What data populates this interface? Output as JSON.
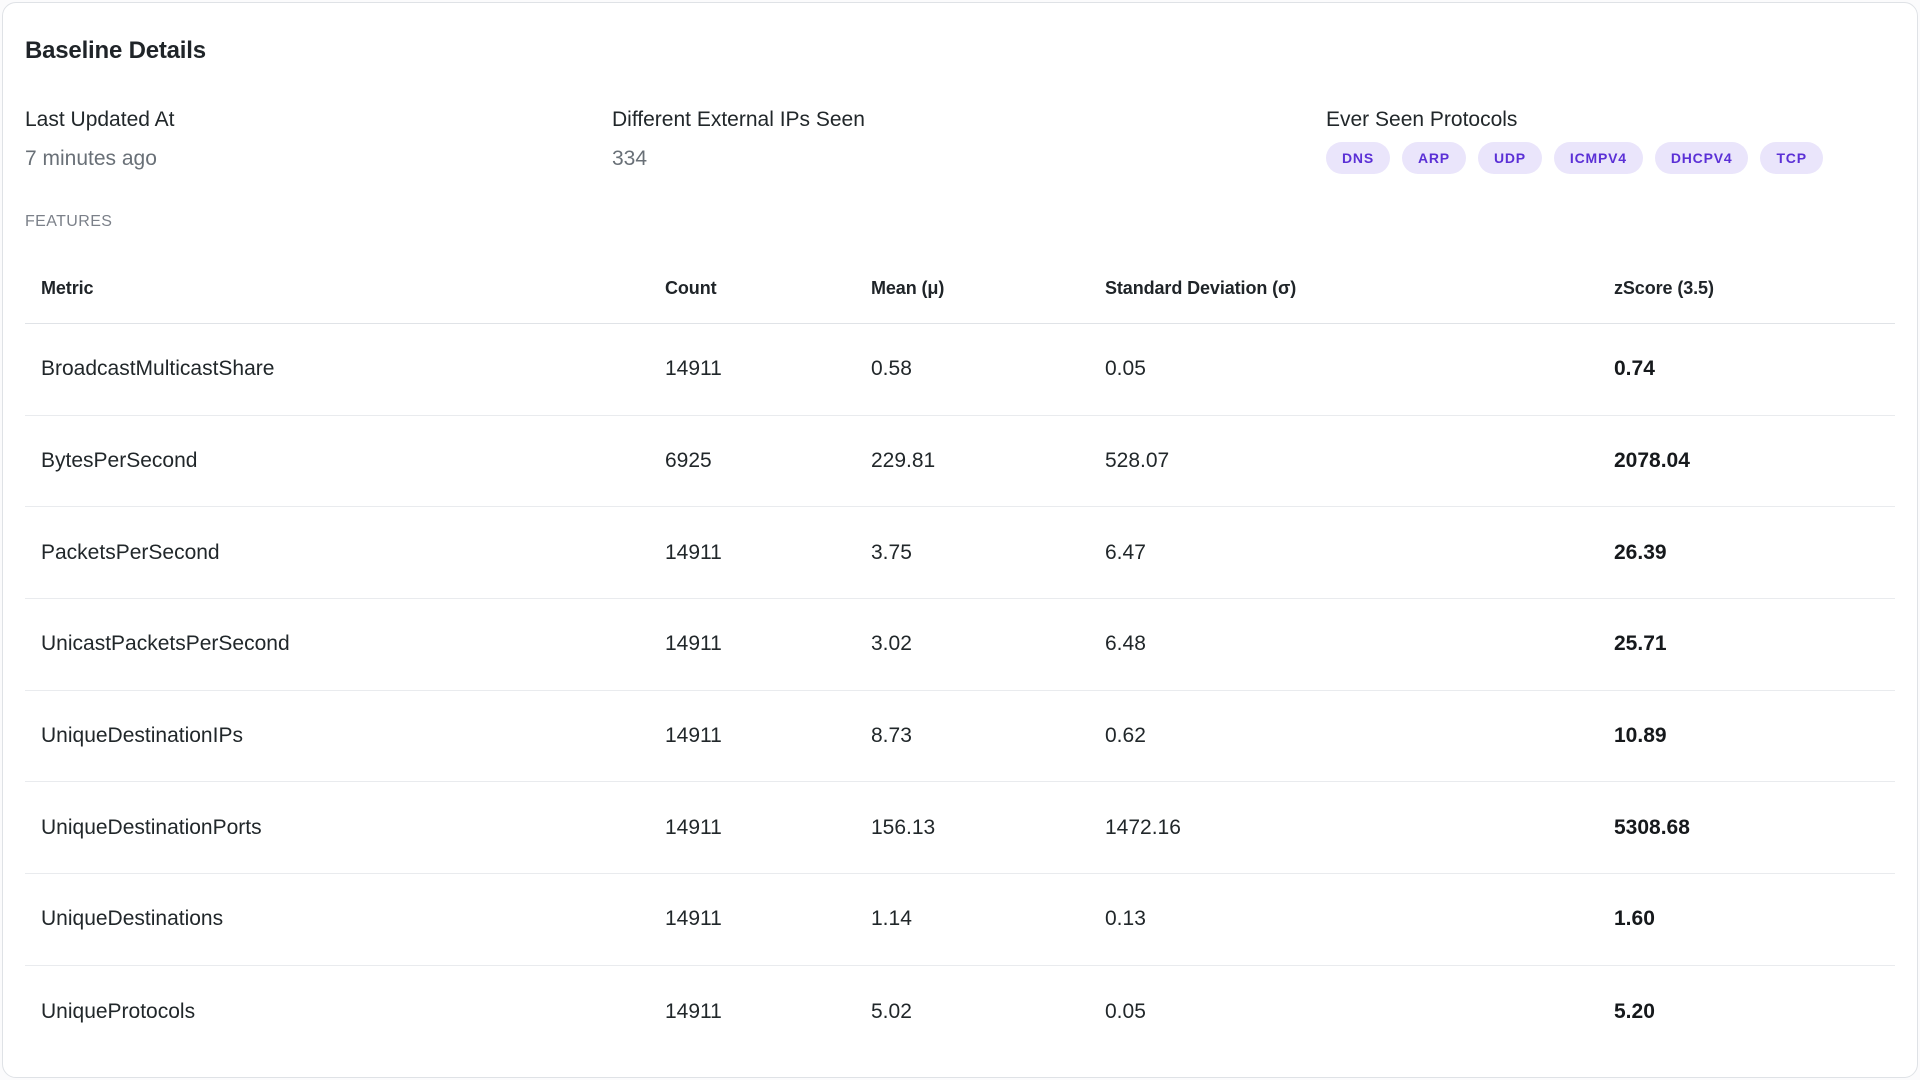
{
  "card": {
    "title": "Baseline Details"
  },
  "info": {
    "last_updated": {
      "label": "Last Updated At",
      "value": "7 minutes ago"
    },
    "external_ips": {
      "label": "Different External IPs Seen",
      "value": "334"
    },
    "protocols": {
      "label": "Ever Seen Protocols",
      "badges": [
        "DNS",
        "ARP",
        "UDP",
        "ICMPV4",
        "DHCPV4",
        "TCP"
      ]
    }
  },
  "features": {
    "section_label": "FEATURES"
  },
  "table": {
    "columns": [
      "Metric",
      "Count",
      "Mean (μ)",
      "Standard Deviation (σ)",
      "zScore (3.5)"
    ],
    "rows": [
      {
        "metric": "BroadcastMulticastShare",
        "count": "14911",
        "mean": "0.58",
        "std_dev": "0.05",
        "zscore": "0.74"
      },
      {
        "metric": "BytesPerSecond",
        "count": "6925",
        "mean": "229.81",
        "std_dev": "528.07",
        "zscore": "2078.04"
      },
      {
        "metric": "PacketsPerSecond",
        "count": "14911",
        "mean": "3.75",
        "std_dev": "6.47",
        "zscore": "26.39"
      },
      {
        "metric": "UnicastPacketsPerSecond",
        "count": "14911",
        "mean": "3.02",
        "std_dev": "6.48",
        "zscore": "25.71"
      },
      {
        "metric": "UniqueDestinationIPs",
        "count": "14911",
        "mean": "8.73",
        "std_dev": "0.62",
        "zscore": "10.89"
      },
      {
        "metric": "UniqueDestinationPorts",
        "count": "14911",
        "mean": "156.13",
        "std_dev": "1472.16",
        "zscore": "5308.68"
      },
      {
        "metric": "UniqueDestinations",
        "count": "14911",
        "mean": "1.14",
        "std_dev": "0.13",
        "zscore": "1.60"
      },
      {
        "metric": "UniqueProtocols",
        "count": "14911",
        "mean": "5.02",
        "std_dev": "0.05",
        "zscore": "5.20"
      }
    ]
  },
  "colors": {
    "accent_purple": "#5b30d6",
    "badge_background": "#eae5fb",
    "text_dark": "#21272a",
    "text_gray": "#697077",
    "divider": "#e9ebee"
  }
}
